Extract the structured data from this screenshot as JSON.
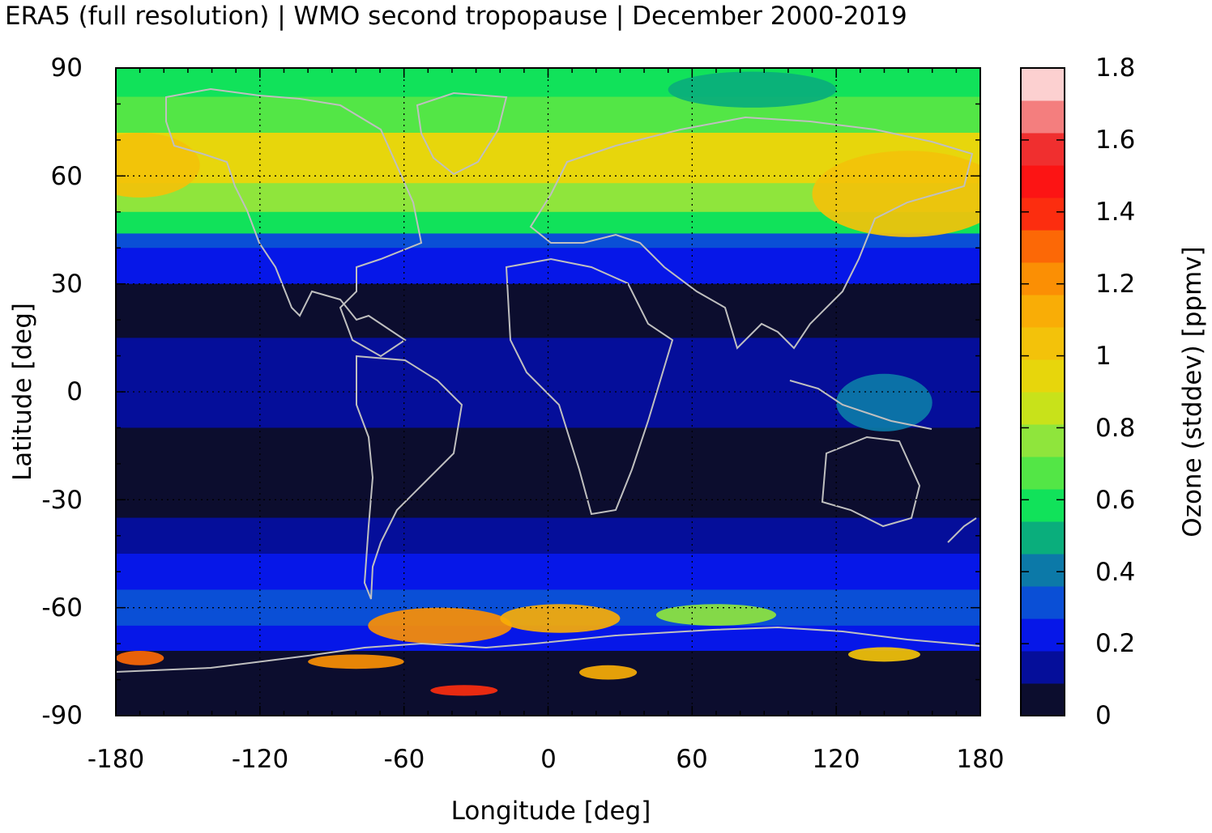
{
  "title": "ERA5 (full resolution) | WMO second tropopause | December 2000-2019",
  "map": {
    "xlabel": "Longitude [deg]",
    "ylabel": "Latitude [deg]",
    "xticks": [
      "-180",
      "-120",
      "-60",
      "0",
      "60",
      "120",
      "180"
    ],
    "yticks": [
      "90",
      "60",
      "30",
      "0",
      "-30",
      "-60",
      "-90"
    ],
    "xlim": [
      -180,
      180
    ],
    "ylim": [
      -90,
      90
    ],
    "grid": "dotted at ±60 and 0 longitude / latitude",
    "coastline_color": "#bfbfbf"
  },
  "colorbar": {
    "title": "Ozone (stddev) [ppmv]",
    "ticks": [
      "1.8",
      "1.6",
      "1.4",
      "1.2",
      "1",
      "0.8",
      "0.6",
      "0.4",
      "0.2",
      "0"
    ],
    "range": [
      0,
      1.8
    ],
    "step": 0.09,
    "colors": [
      "#0c0d2e",
      "#050e9a",
      "#0617e8",
      "#0a4fd6",
      "#0c79a8",
      "#0aae7c",
      "#11e25a",
      "#53e646",
      "#8fe53c",
      "#c8e21a",
      "#e7d60c",
      "#f3c20a",
      "#f9ad06",
      "#fb8f04",
      "#fc6806",
      "#fc2d0f",
      "#fc1414",
      "#f02f2f",
      "#f47e7e",
      "#fcd0d0"
    ]
  },
  "bands": [
    {
      "lat_top": 90,
      "lat_bottom": 82,
      "value": 0.62
    },
    {
      "lat_top": 82,
      "lat_bottom": 72,
      "value": 0.72
    },
    {
      "lat_top": 72,
      "lat_bottom": 58,
      "value": 0.9
    },
    {
      "lat_top": 58,
      "lat_bottom": 50,
      "value": 0.75
    },
    {
      "lat_top": 50,
      "lat_bottom": 44,
      "value": 0.55
    },
    {
      "lat_top": 44,
      "lat_bottom": 40,
      "value": 0.35
    },
    {
      "lat_top": 40,
      "lat_bottom": 30,
      "value": 0.2
    },
    {
      "lat_top": 30,
      "lat_bottom": 15,
      "value": 0.08
    },
    {
      "lat_top": 15,
      "lat_bottom": -10,
      "value": 0.18
    },
    {
      "lat_top": -10,
      "lat_bottom": -35,
      "value": 0.06
    },
    {
      "lat_top": -35,
      "lat_bottom": -45,
      "value": 0.18
    },
    {
      "lat_top": -45,
      "lat_bottom": -55,
      "value": 0.26
    },
    {
      "lat_top": -55,
      "lat_bottom": -65,
      "value": 0.3
    },
    {
      "lat_top": -65,
      "lat_bottom": -72,
      "value": 0.22
    },
    {
      "lat_top": -72,
      "lat_bottom": -90,
      "value": 0.06
    }
  ],
  "features": [
    {
      "name": "ne-asia-high",
      "lon": 150,
      "lat": 55,
      "rlon": 40,
      "rlat": 12,
      "value": 1.05
    },
    {
      "name": "north-atlantic-high",
      "lon": -170,
      "lat": 63,
      "rlon": 25,
      "rlat": 9,
      "value": 1.0
    },
    {
      "name": "arctic-low",
      "lon": 85,
      "lat": 84,
      "rlon": 35,
      "rlat": 5,
      "value": 0.48
    },
    {
      "name": "southern-ocean-high",
      "lon": -45,
      "lat": -65,
      "rlon": 30,
      "rlat": 5,
      "value": 1.2
    },
    {
      "name": "southern-ocean-high-2",
      "lon": 5,
      "lat": -63,
      "rlon": 25,
      "rlat": 4,
      "value": 1.1
    },
    {
      "name": "southern-ocean-high-3",
      "lon": 70,
      "lat": -62,
      "rlon": 25,
      "rlat": 3,
      "value": 0.8
    },
    {
      "name": "antarctic-streak-1",
      "lon": -170,
      "lat": -74,
      "rlon": 10,
      "rlat": 2,
      "value": 1.3
    },
    {
      "name": "antarctic-streak-2",
      "lon": -80,
      "lat": -75,
      "rlon": 20,
      "rlat": 2,
      "value": 1.2
    },
    {
      "name": "antarctic-streak-3",
      "lon": -35,
      "lat": -83,
      "rlon": 14,
      "rlat": 1.5,
      "value": 1.4
    },
    {
      "name": "antarctic-streak-4",
      "lon": 25,
      "lat": -78,
      "rlon": 12,
      "rlat": 2,
      "value": 1.1
    },
    {
      "name": "antarctic-streak-5",
      "lon": 140,
      "lat": -73,
      "rlon": 15,
      "rlat": 2,
      "value": 1.0
    },
    {
      "name": "maritime-continent",
      "lon": 140,
      "lat": -3,
      "rlon": 20,
      "rlat": 8,
      "value": 0.38
    }
  ]
}
